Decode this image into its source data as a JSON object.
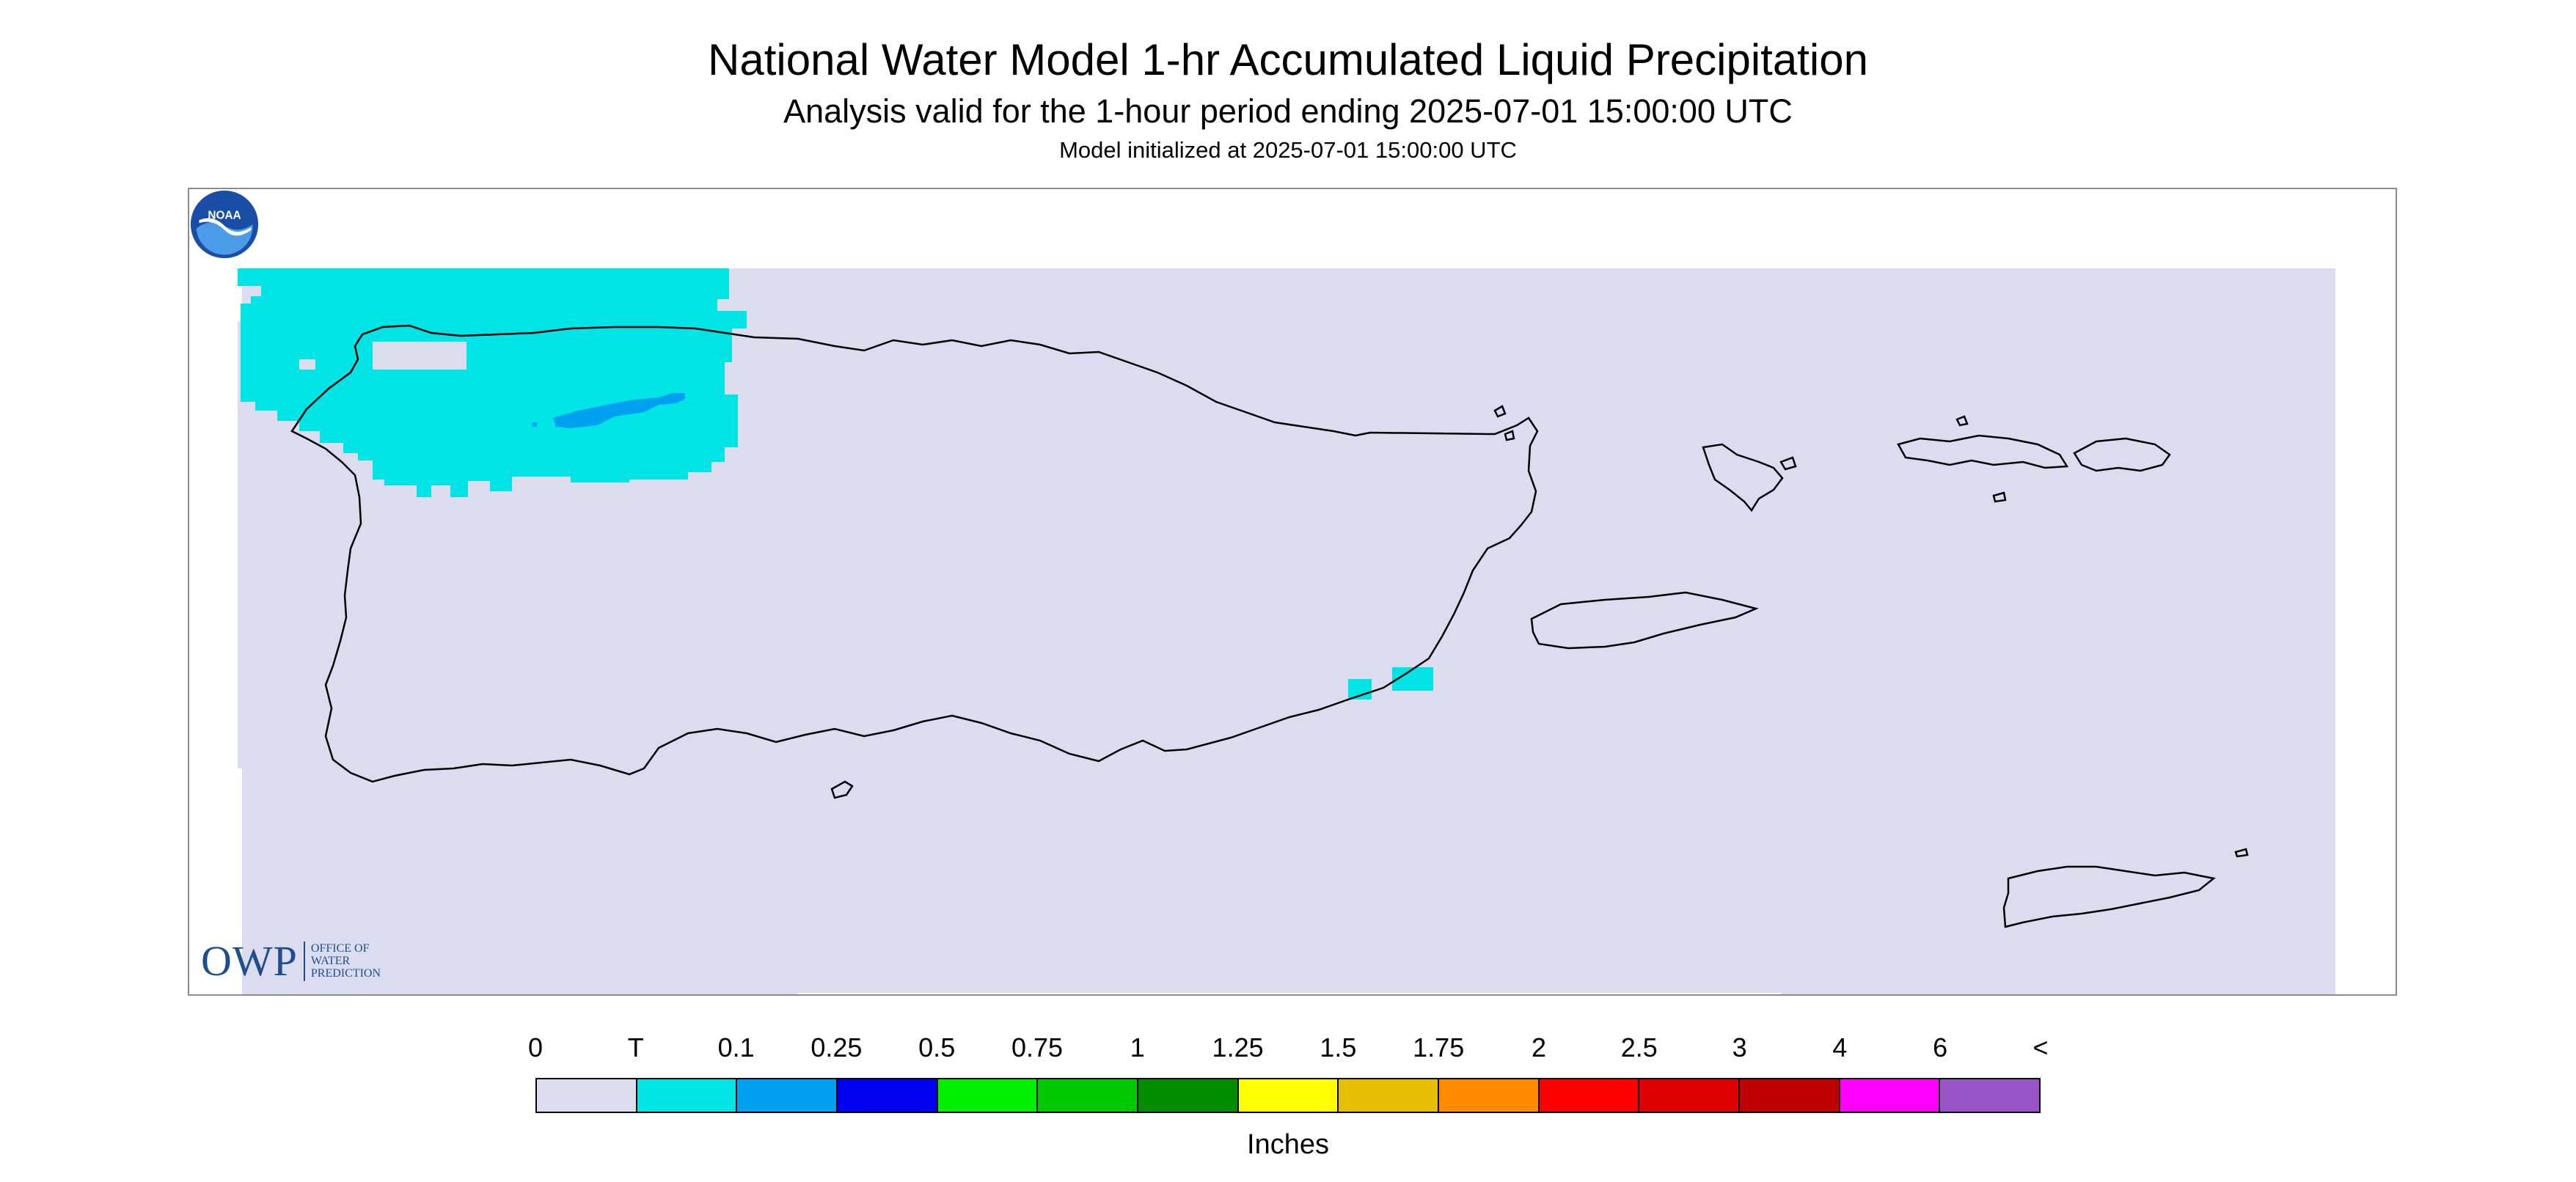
{
  "header": {
    "title": "National Water Model 1-hr Accumulated Liquid Precipitation",
    "subtitle": "Analysis valid for the 1-hour period ending 2025-07-01 15:00:00 UTC",
    "init": "Model initialized at 2025-07-01 15:00:00 UTC"
  },
  "logos": {
    "owp_big": "OWP",
    "owp_line1": "OFFICE OF",
    "owp_line2": "WATER",
    "owp_line3": "PREDICTION",
    "noaa_text": "NOAA",
    "noaa_icon": "noaa-logo-icon"
  },
  "legend": {
    "labels": [
      "0",
      "T",
      "0.1",
      "0.25",
      "0.5",
      "0.75",
      "1",
      "1.25",
      "1.5",
      "1.75",
      "2",
      "2.5",
      "3",
      "4",
      "6",
      "<"
    ],
    "colors": [
      "#dcdcf0",
      "#00e4e6",
      "#00a0f0",
      "#0000f0",
      "#00f000",
      "#00c800",
      "#008c00",
      "#ffff00",
      "#e6be00",
      "#ff8c00",
      "#ff0000",
      "#dc0000",
      "#be0000",
      "#ff00ff",
      "#9955c8"
    ],
    "units": "Inches"
  },
  "colors": {
    "no_precip": "#dcdcf0",
    "trace": "#00e4e6",
    "light": "#00a0f0",
    "coastline": "#000000",
    "frame": "#8c8c8c"
  }
}
